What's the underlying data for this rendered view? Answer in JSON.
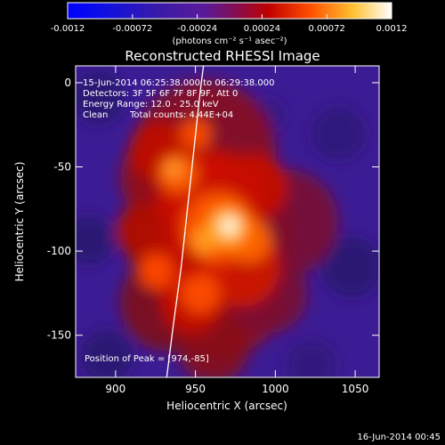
{
  "colorbar": {
    "ticks": [
      "-0.0012",
      "-0.00072",
      "-0.00024",
      "0.00024",
      "0.00072",
      "0.0012"
    ],
    "units_label": "(photons cm⁻² s⁻¹ asec⁻²)",
    "min": -0.0012,
    "max": 0.0012
  },
  "chart_data": {
    "type": "heatmap",
    "title": "Reconstructed RHESSI Image",
    "xlabel": "Heliocentric X (arcsec)",
    "ylabel": "Heliocentric Y (arcsec)",
    "xlim": [
      875,
      1065
    ],
    "ylim": [
      -175,
      10
    ],
    "x_ticks": [
      900,
      950,
      1000,
      1050
    ],
    "y_ticks": [
      -150,
      -100,
      -50,
      0
    ],
    "annotations": [
      "15-Jun-2014 06:25:38.000 to 06:29:38.000",
      "Detectors: 3F 5F 6F 7F 8F 9F, Att 0",
      "Energy Range: 12.0 - 25.0 keV",
      "Clean",
      "Total counts: 4.44E+04"
    ],
    "peak_label": "Position of Peak = [974,-85]",
    "peak": [
      974,
      -85
    ],
    "limb_points": [
      [
        932,
        -175
      ],
      [
        936,
        -145
      ],
      [
        941,
        -110
      ],
      [
        945,
        -75
      ],
      [
        949,
        -40
      ],
      [
        953,
        -5
      ],
      [
        955,
        10
      ]
    ]
  },
  "footer": {
    "timestamp": "16-Jun-2014 00:45"
  }
}
